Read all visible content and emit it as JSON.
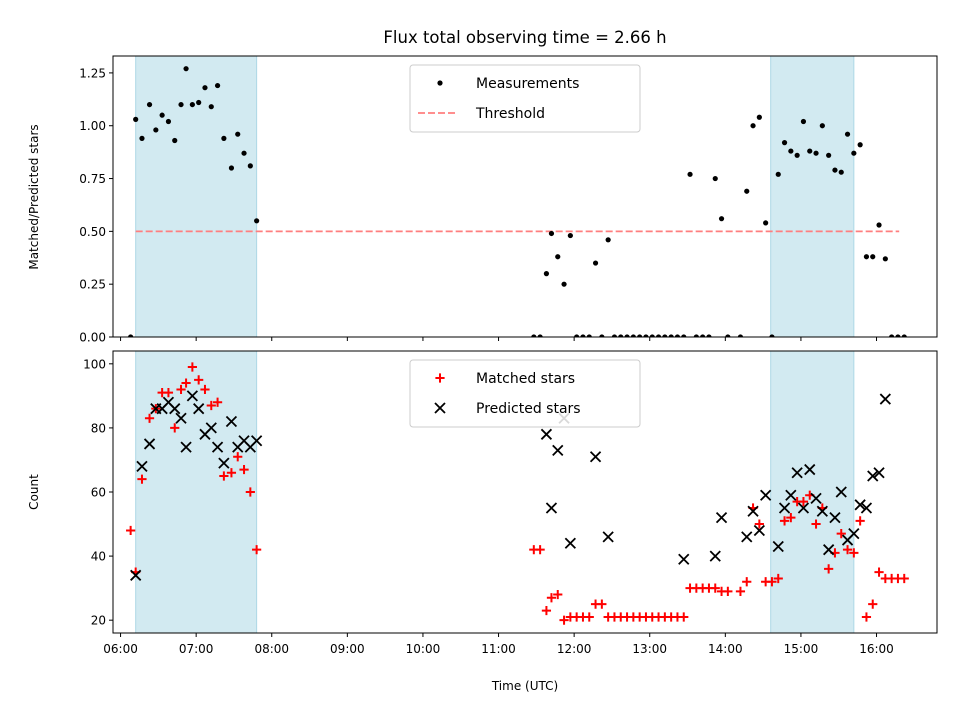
{
  "chart_data": {
    "title": "Flux total observing time = 2.66 h",
    "shaded_intervals": [
      [
        "06:12",
        "07:48"
      ],
      [
        "14:36",
        "15:42"
      ]
    ],
    "colors": {
      "measurements": "#000000",
      "threshold": "#ff7f7f",
      "matched": "#ff0000",
      "predicted": "#000000",
      "shade": "#add8e6"
    },
    "x_axis": {
      "label": "Time (UTC)",
      "range": [
        "05:54",
        "16:48"
      ],
      "ticks": [
        "06:00",
        "07:00",
        "08:00",
        "09:00",
        "10:00",
        "11:00",
        "12:00",
        "13:00",
        "14:00",
        "15:00",
        "16:00"
      ]
    },
    "top": {
      "type": "scatter",
      "ylabel": "Matched/Predicted stars",
      "ylim": [
        0,
        1.33
      ],
      "yticks": [
        "0.00",
        "0.25",
        "0.50",
        "0.75",
        "1.00",
        "1.25"
      ],
      "legend": {
        "placement": "top-center",
        "entries": [
          "Measurements",
          "Threshold"
        ]
      },
      "threshold": {
        "value": 0.5,
        "x_start": "06:12",
        "x_end": "16:18"
      },
      "measurements": [
        [
          "06:08",
          0.0
        ],
        [
          "06:12",
          1.03
        ],
        [
          "06:17",
          0.94
        ],
        [
          "06:23",
          1.1
        ],
        [
          "06:28",
          0.98
        ],
        [
          "06:33",
          1.05
        ],
        [
          "06:38",
          1.02
        ],
        [
          "06:43",
          0.93
        ],
        [
          "06:48",
          1.1
        ],
        [
          "06:52",
          1.27
        ],
        [
          "06:57",
          1.1
        ],
        [
          "07:02",
          1.11
        ],
        [
          "07:07",
          1.18
        ],
        [
          "07:12",
          1.09
        ],
        [
          "07:17",
          1.19
        ],
        [
          "07:22",
          0.94
        ],
        [
          "07:28",
          0.8
        ],
        [
          "07:33",
          0.96
        ],
        [
          "07:38",
          0.87
        ],
        [
          "07:43",
          0.81
        ],
        [
          "07:48",
          0.55
        ],
        [
          "11:28",
          0.0
        ],
        [
          "11:33",
          0.0
        ],
        [
          "11:38",
          0.3
        ],
        [
          "11:42",
          0.49
        ],
        [
          "11:47",
          0.38
        ],
        [
          "11:52",
          0.25
        ],
        [
          "11:57",
          0.48
        ],
        [
          "12:02",
          0.0
        ],
        [
          "12:07",
          0.0
        ],
        [
          "12:12",
          0.0
        ],
        [
          "12:17",
          0.35
        ],
        [
          "12:22",
          0.0
        ],
        [
          "12:27",
          0.46
        ],
        [
          "12:32",
          0.0
        ],
        [
          "12:37",
          0.0
        ],
        [
          "12:42",
          0.0
        ],
        [
          "12:47",
          0.0
        ],
        [
          "12:52",
          0.0
        ],
        [
          "12:57",
          0.0
        ],
        [
          "13:02",
          0.0
        ],
        [
          "13:07",
          0.0
        ],
        [
          "13:12",
          0.0
        ],
        [
          "13:17",
          0.0
        ],
        [
          "13:22",
          0.0
        ],
        [
          "13:27",
          0.0
        ],
        [
          "13:32",
          0.77
        ],
        [
          "13:37",
          0.0
        ],
        [
          "13:42",
          0.0
        ],
        [
          "13:47",
          0.0
        ],
        [
          "13:52",
          0.75
        ],
        [
          "13:57",
          0.56
        ],
        [
          "14:02",
          0.0
        ],
        [
          "14:12",
          0.0
        ],
        [
          "14:17",
          0.69
        ],
        [
          "14:22",
          1.0
        ],
        [
          "14:27",
          1.04
        ],
        [
          "14:32",
          0.54
        ],
        [
          "14:37",
          0.0
        ],
        [
          "14:42",
          0.77
        ],
        [
          "14:47",
          0.92
        ],
        [
          "14:52",
          0.88
        ],
        [
          "14:57",
          0.86
        ],
        [
          "15:02",
          1.02
        ],
        [
          "15:07",
          0.88
        ],
        [
          "15:12",
          0.87
        ],
        [
          "15:17",
          1.0
        ],
        [
          "15:22",
          0.86
        ],
        [
          "15:27",
          0.79
        ],
        [
          "15:32",
          0.78
        ],
        [
          "15:37",
          0.96
        ],
        [
          "15:42",
          0.87
        ],
        [
          "15:47",
          0.91
        ],
        [
          "15:52",
          0.38
        ],
        [
          "15:57",
          0.38
        ],
        [
          "16:02",
          0.53
        ],
        [
          "16:07",
          0.37
        ],
        [
          "16:12",
          0.0
        ],
        [
          "16:17",
          0.0
        ],
        [
          "16:22",
          0.0
        ]
      ]
    },
    "bottom": {
      "type": "scatter",
      "ylabel": "Count",
      "ylim": [
        16,
        104
      ],
      "yticks": [
        "20",
        "40",
        "60",
        "80",
        "100"
      ],
      "legend": {
        "placement": "top-center",
        "entries": [
          "Matched stars",
          "Predicted stars"
        ]
      },
      "matched": [
        [
          "06:08",
          48
        ],
        [
          "06:12",
          35
        ],
        [
          "06:17",
          64
        ],
        [
          "06:23",
          83
        ],
        [
          "06:28",
          86
        ],
        [
          "06:33",
          91
        ],
        [
          "06:38",
          91
        ],
        [
          "06:43",
          80
        ],
        [
          "06:48",
          92
        ],
        [
          "06:52",
          94
        ],
        [
          "06:57",
          99
        ],
        [
          "07:02",
          95
        ],
        [
          "07:07",
          92
        ],
        [
          "07:12",
          87
        ],
        [
          "07:17",
          88
        ],
        [
          "07:22",
          65
        ],
        [
          "07:28",
          66
        ],
        [
          "07:33",
          71
        ],
        [
          "07:38",
          67
        ],
        [
          "07:43",
          60
        ],
        [
          "07:48",
          42
        ],
        [
          "11:28",
          42
        ],
        [
          "11:33",
          42
        ],
        [
          "11:38",
          23
        ],
        [
          "11:42",
          27
        ],
        [
          "11:47",
          28
        ],
        [
          "11:52",
          20
        ],
        [
          "11:57",
          21
        ],
        [
          "12:02",
          21
        ],
        [
          "12:07",
          21
        ],
        [
          "12:12",
          21
        ],
        [
          "12:17",
          25
        ],
        [
          "12:22",
          25
        ],
        [
          "12:27",
          21
        ],
        [
          "12:32",
          21
        ],
        [
          "12:37",
          21
        ],
        [
          "12:42",
          21
        ],
        [
          "12:47",
          21
        ],
        [
          "12:52",
          21
        ],
        [
          "12:57",
          21
        ],
        [
          "13:02",
          21
        ],
        [
          "13:07",
          21
        ],
        [
          "13:12",
          21
        ],
        [
          "13:17",
          21
        ],
        [
          "13:22",
          21
        ],
        [
          "13:27",
          21
        ],
        [
          "13:32",
          30
        ],
        [
          "13:37",
          30
        ],
        [
          "13:42",
          30
        ],
        [
          "13:47",
          30
        ],
        [
          "13:52",
          30
        ],
        [
          "13:57",
          29
        ],
        [
          "14:02",
          29
        ],
        [
          "14:12",
          29
        ],
        [
          "14:17",
          32
        ],
        [
          "14:22",
          55
        ],
        [
          "14:27",
          50
        ],
        [
          "14:32",
          32
        ],
        [
          "14:37",
          32
        ],
        [
          "14:42",
          33
        ],
        [
          "14:47",
          51
        ],
        [
          "14:52",
          52
        ],
        [
          "14:57",
          57
        ],
        [
          "15:02",
          57
        ],
        [
          "15:07",
          59
        ],
        [
          "15:12",
          50
        ],
        [
          "15:17",
          55
        ],
        [
          "15:22",
          36
        ],
        [
          "15:27",
          41
        ],
        [
          "15:32",
          47
        ],
        [
          "15:37",
          42
        ],
        [
          "15:42",
          41
        ],
        [
          "15:47",
          51
        ],
        [
          "15:52",
          21
        ],
        [
          "15:57",
          25
        ],
        [
          "16:02",
          35
        ],
        [
          "16:07",
          33
        ],
        [
          "16:12",
          33
        ],
        [
          "16:17",
          33
        ],
        [
          "16:22",
          33
        ]
      ],
      "predicted": [
        [
          "06:12",
          34
        ],
        [
          "06:17",
          68
        ],
        [
          "06:23",
          75
        ],
        [
          "06:28",
          86
        ],
        [
          "06:33",
          86
        ],
        [
          "06:38",
          88
        ],
        [
          "06:43",
          86
        ],
        [
          "06:48",
          83
        ],
        [
          "06:52",
          74
        ],
        [
          "06:57",
          90
        ],
        [
          "07:02",
          86
        ],
        [
          "07:07",
          78
        ],
        [
          "07:12",
          80
        ],
        [
          "07:17",
          74
        ],
        [
          "07:22",
          69
        ],
        [
          "07:28",
          82
        ],
        [
          "07:33",
          74
        ],
        [
          "07:38",
          76
        ],
        [
          "07:43",
          74
        ],
        [
          "07:48",
          76
        ],
        [
          "11:38",
          78
        ],
        [
          "11:42",
          55
        ],
        [
          "11:47",
          73
        ],
        [
          "11:52",
          83
        ],
        [
          "11:57",
          44
        ],
        [
          "12:17",
          71
        ],
        [
          "12:27",
          46
        ],
        [
          "13:27",
          39
        ],
        [
          "13:52",
          40
        ],
        [
          "13:57",
          52
        ],
        [
          "14:17",
          46
        ],
        [
          "14:22",
          54
        ],
        [
          "14:27",
          48
        ],
        [
          "14:32",
          59
        ],
        [
          "14:42",
          43
        ],
        [
          "14:47",
          55
        ],
        [
          "14:52",
          59
        ],
        [
          "14:57",
          66
        ],
        [
          "15:02",
          55
        ],
        [
          "15:07",
          67
        ],
        [
          "15:12",
          58
        ],
        [
          "15:17",
          54
        ],
        [
          "15:22",
          42
        ],
        [
          "15:27",
          52
        ],
        [
          "15:32",
          60
        ],
        [
          "15:37",
          45
        ],
        [
          "15:42",
          47
        ],
        [
          "15:47",
          56
        ],
        [
          "15:52",
          55
        ],
        [
          "15:57",
          65
        ],
        [
          "16:02",
          66
        ],
        [
          "16:07",
          89
        ]
      ]
    }
  }
}
